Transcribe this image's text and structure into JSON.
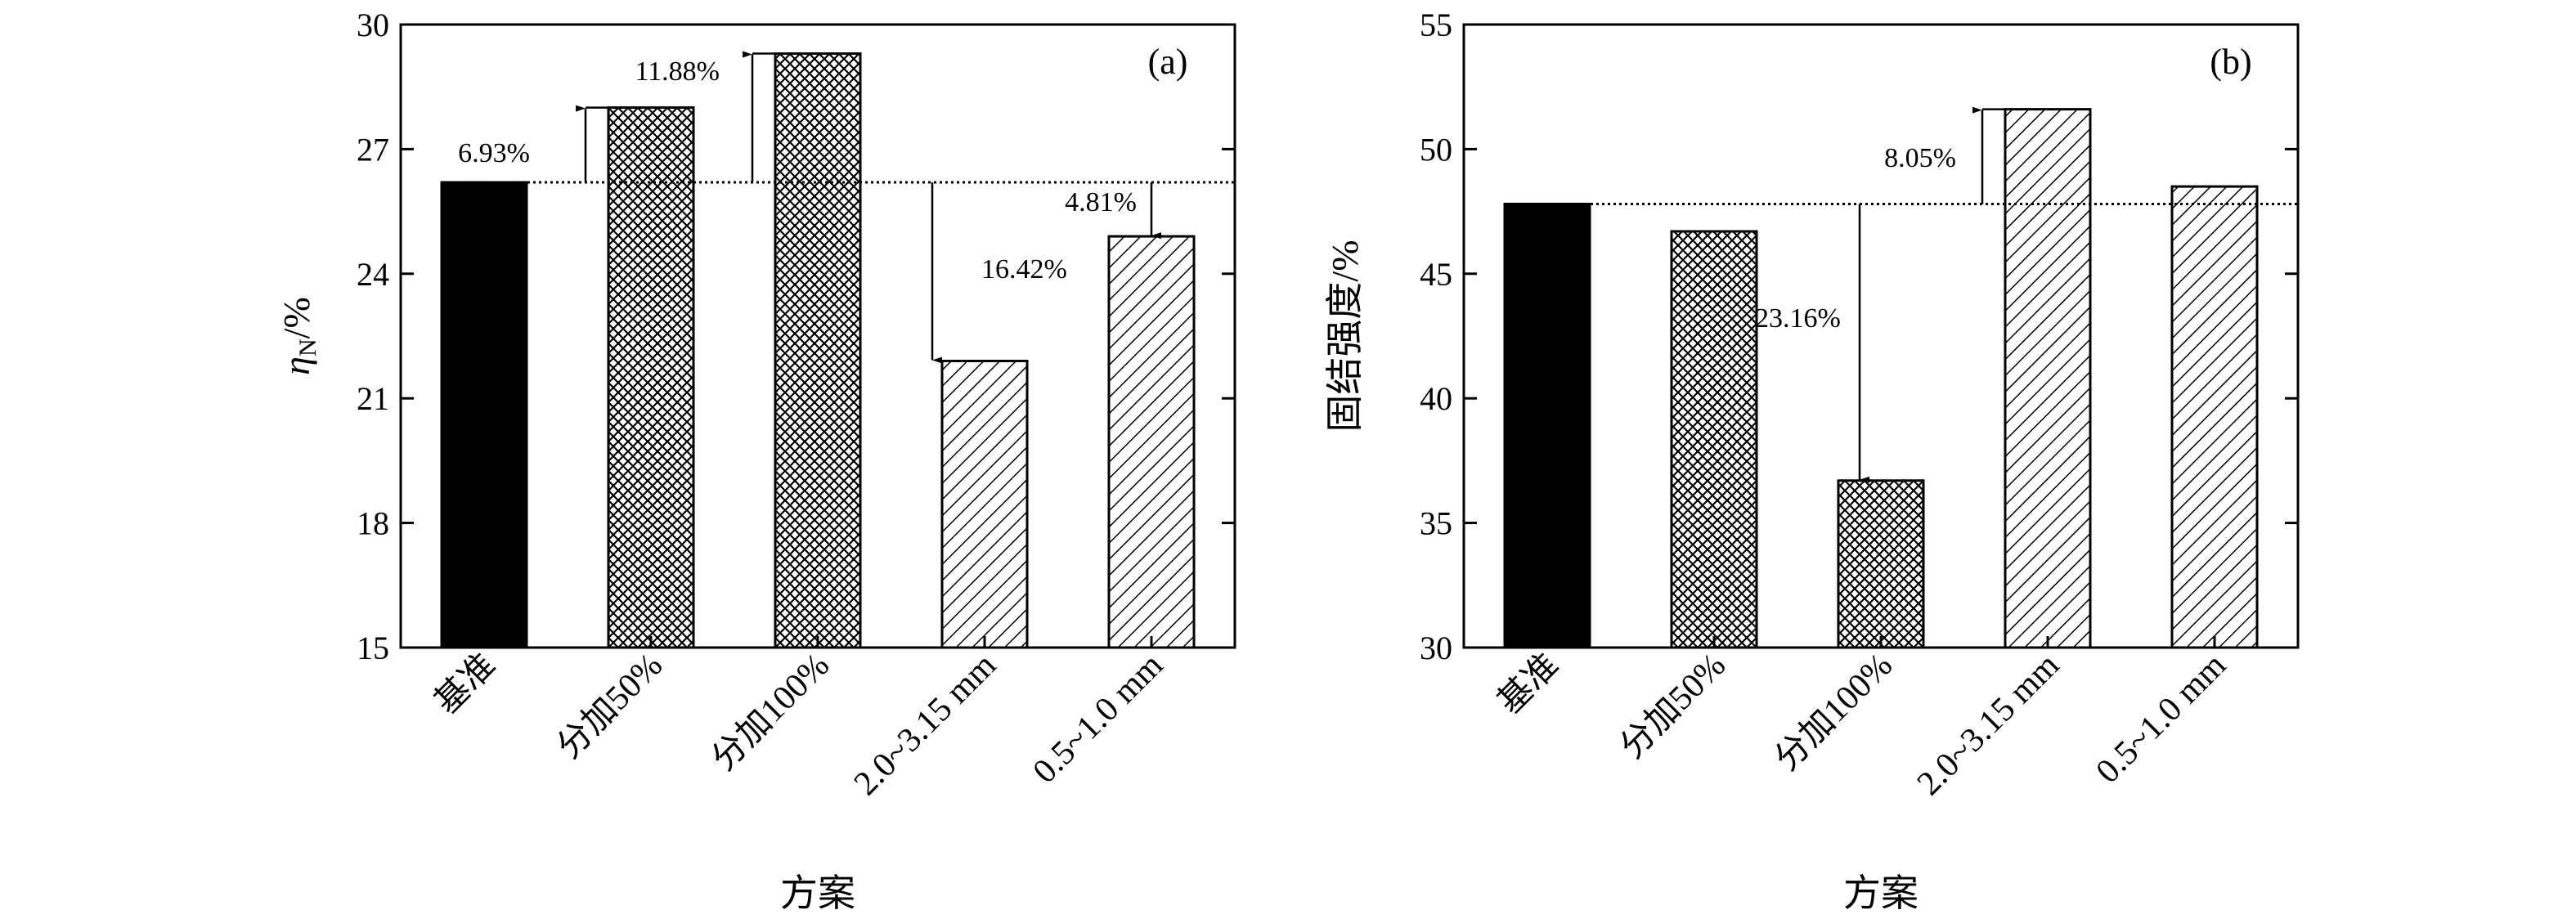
{
  "chart_data": [
    {
      "type": "bar",
      "panel_label": "(a)",
      "categories": [
        "基准",
        "分加50%",
        "分加100%",
        "2.0~3.15 mm",
        "0.5~1.0 mm"
      ],
      "values": [
        26.2,
        28.0,
        29.3,
        21.9,
        24.9
      ],
      "bar_fills": [
        "solid",
        "crosshatch",
        "crosshatch",
        "diagonal",
        "diagonal"
      ],
      "xlabel": "方案",
      "ylabel_main": "η",
      "ylabel_sub": "N",
      "ylabel_suffix": "/%",
      "ylim": [
        15,
        30
      ],
      "yticks": [
        "15",
        "18",
        "21",
        "24",
        "27",
        "30"
      ],
      "reference_value": 26.2,
      "annotations": [
        {
          "bar": 1,
          "text": "6.93%",
          "direction": "up"
        },
        {
          "bar": 2,
          "text": "11.88%",
          "direction": "up"
        },
        {
          "bar": 3,
          "text": "16.42%",
          "direction": "down"
        },
        {
          "bar": 4,
          "text": "4.81%",
          "direction": "down"
        }
      ],
      "grid": false
    },
    {
      "type": "bar",
      "panel_label": "(b)",
      "categories": [
        "基准",
        "分加50%",
        "分加100%",
        "2.0~3.15 mm",
        "0.5~1.0 mm"
      ],
      "values": [
        47.8,
        46.7,
        36.7,
        51.6,
        48.5
      ],
      "bar_fills": [
        "solid",
        "crosshatch",
        "crosshatch",
        "diagonal",
        "diagonal"
      ],
      "xlabel": "方案",
      "ylabel": "固结强度/%",
      "ylim": [
        30,
        55
      ],
      "yticks": [
        "30",
        "35",
        "40",
        "45",
        "50",
        "55"
      ],
      "reference_value": 47.8,
      "annotations": [
        {
          "bar": 2,
          "text": "23.16%",
          "direction": "down"
        },
        {
          "bar": 3,
          "text": "8.05%",
          "direction": "up"
        }
      ],
      "grid": false
    }
  ]
}
